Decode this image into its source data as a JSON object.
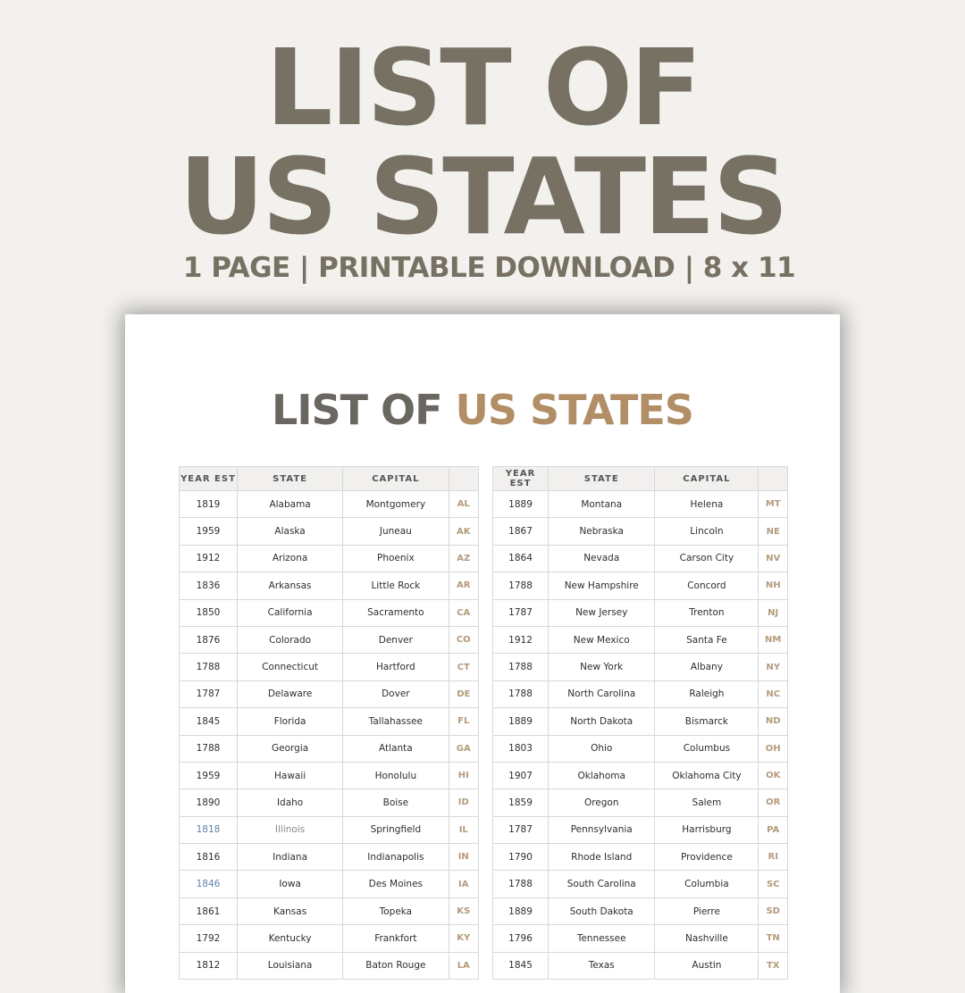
{
  "hero": {
    "line1": "LIST OF",
    "line2": "US STATES",
    "subtitle": "1 PAGE | PRINTABLE DOWNLOAD | 8 x 11"
  },
  "page": {
    "title_a": "LIST OF ",
    "title_b": "US STATES"
  },
  "colors": {
    "hero": "#777163",
    "accent": "#b18e66",
    "abbr": "#b49a7c",
    "highlight_year": "#5c82a8"
  },
  "headers": [
    "YEAR EST",
    "STATE",
    "CAPITAL",
    ""
  ],
  "left": [
    [
      "1819",
      "Alabama",
      "Montgomery",
      "AL"
    ],
    [
      "1959",
      "Alaska",
      "Juneau",
      "AK"
    ],
    [
      "1912",
      "Arizona",
      "Phoenix",
      "AZ"
    ],
    [
      "1836",
      "Arkansas",
      "Little Rock",
      "AR"
    ],
    [
      "1850",
      "California",
      "Sacramento",
      "CA"
    ],
    [
      "1876",
      "Colorado",
      "Denver",
      "CO"
    ],
    [
      "1788",
      "Connecticut",
      "Hartford",
      "CT"
    ],
    [
      "1787",
      "Delaware",
      "Dover",
      "DE"
    ],
    [
      "1845",
      "Florida",
      "Tallahassee",
      "FL"
    ],
    [
      "1788",
      "Georgia",
      "Atlanta",
      "GA"
    ],
    [
      "1959",
      "Hawaii",
      "Honolulu",
      "HI"
    ],
    [
      "1890",
      "Idaho",
      "Boise",
      "ID"
    ],
    [
      "1818",
      "Illinois",
      "Springfield",
      "IL"
    ],
    [
      "1816",
      "Indiana",
      "Indianapolis",
      "IN"
    ],
    [
      "1846",
      "Iowa",
      "Des Moines",
      "IA"
    ],
    [
      "1861",
      "Kansas",
      "Topeka",
      "KS"
    ],
    [
      "1792",
      "Kentucky",
      "Frankfort",
      "KY"
    ],
    [
      "1812",
      "Louisiana",
      "Baton Rouge",
      "LA"
    ]
  ],
  "right": [
    [
      "1889",
      "Montana",
      "Helena",
      "MT"
    ],
    [
      "1867",
      "Nebraska",
      "Lincoln",
      "NE"
    ],
    [
      "1864",
      "Nevada",
      "Carson City",
      "NV"
    ],
    [
      "1788",
      "New Hampshire",
      "Concord",
      "NH"
    ],
    [
      "1787",
      "New Jersey",
      "Trenton",
      "NJ"
    ],
    [
      "1912",
      "New Mexico",
      "Santa Fe",
      "NM"
    ],
    [
      "1788",
      "New York",
      "Albany",
      "NY"
    ],
    [
      "1788",
      "North Carolina",
      "Raleigh",
      "NC"
    ],
    [
      "1889",
      "North Dakota",
      "Bismarck",
      "ND"
    ],
    [
      "1803",
      "Ohio",
      "Columbus",
      "OH"
    ],
    [
      "1907",
      "Oklahoma",
      "Oklahoma City",
      "OK"
    ],
    [
      "1859",
      "Oregon",
      "Salem",
      "OR"
    ],
    [
      "1787",
      "Pennsylvania",
      "Harrisburg",
      "PA"
    ],
    [
      "1790",
      "Rhode Island",
      "Providence",
      "RI"
    ],
    [
      "1788",
      "South Carolina",
      "Columbia",
      "SC"
    ],
    [
      "1889",
      "South Dakota",
      "Pierre",
      "SD"
    ],
    [
      "1796",
      "Tennessee",
      "Nashville",
      "TN"
    ],
    [
      "1845",
      "Texas",
      "Austin",
      "TX"
    ]
  ]
}
